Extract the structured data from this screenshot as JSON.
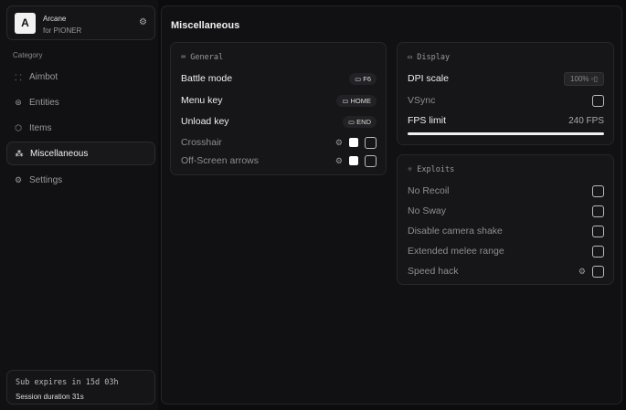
{
  "app": {
    "logo_letter": "A",
    "name": "Arcane",
    "subtitle": "for PIONER"
  },
  "sidebar": {
    "category_label": "Category",
    "items": [
      {
        "label": "Aimbot",
        "icon": "crosshair-icon",
        "active": false
      },
      {
        "label": "Entities",
        "icon": "entities-icon",
        "active": false
      },
      {
        "label": "Items",
        "icon": "cube-icon",
        "active": false
      },
      {
        "label": "Miscellaneous",
        "icon": "misc-icon",
        "active": true
      },
      {
        "label": "Settings",
        "icon": "gear-icon",
        "active": false
      }
    ]
  },
  "footer": {
    "subscription": "Sub expires in 15d 03h",
    "session": "Session duration 31s"
  },
  "main": {
    "title": "Miscellaneous",
    "general": {
      "header": "General",
      "rows": [
        {
          "label": "Battle mode",
          "key": "F6"
        },
        {
          "label": "Menu key",
          "key": "HOME"
        },
        {
          "label": "Unload key",
          "key": "END"
        },
        {
          "label": "Crosshair",
          "color": "#ffffff",
          "checked": false
        },
        {
          "label": "Off-Screen arrows",
          "color": "#ffffff",
          "checked": false
        }
      ]
    },
    "display": {
      "header": "Display",
      "dpi_label": "DPI scale",
      "dpi_value": "100%",
      "vsync_label": "VSync",
      "vsync_checked": false,
      "fps_label": "FPS limit",
      "fps_value": "240 FPS",
      "fps_fill": 1.0
    },
    "exploits": {
      "header": "Exploits",
      "rows": [
        {
          "label": "No Recoil",
          "checked": false
        },
        {
          "label": "No Sway",
          "checked": false
        },
        {
          "label": "Disable camera shake",
          "checked": false
        },
        {
          "label": "Extended melee range",
          "checked": false
        },
        {
          "label": "Speed hack",
          "checked": false,
          "has_settings": true
        }
      ]
    }
  }
}
